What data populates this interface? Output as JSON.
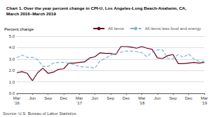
{
  "chart_data": {
    "type": "line",
    "title": "Chart 1. Over the year percent change in CPI-U, Los Angeles-Long Beach-Anaheim, CA,",
    "subtitle": "March 2016–March 2019",
    "ylabel": "Percent change",
    "annotations": [
      "Source: U.S. Bureau of Labor Statistics."
    ],
    "categories": [
      "Mar\n'16",
      null,
      null,
      "Jun",
      null,
      null,
      "Sep",
      null,
      null,
      "Dec",
      null,
      null,
      "Mar\n'17",
      null,
      null,
      "Jun",
      null,
      null,
      "Sep",
      null,
      null,
      "Dec",
      null,
      null,
      "Mar\n'18",
      null,
      null,
      "Jun",
      null,
      null,
      "Sep",
      null,
      null,
      "Dec",
      null,
      null,
      "Mar\n'19"
    ],
    "series": [
      {
        "name": "All items",
        "color": "#6b001a",
        "line_style": "solid",
        "values": [
          1.8,
          1.9,
          1.75,
          1.1,
          1.8,
          2.2,
          1.75,
          1.85,
          2.1,
          2.15,
          2.65,
          2.65,
          2.7,
          2.75,
          3.1,
          3.2,
          3.55,
          3.5,
          3.5,
          3.4,
          4.1,
          4.1,
          4.05,
          3.95,
          4.1,
          3.95,
          3.85,
          3.1,
          3.05,
          3.3,
          3.4,
          2.6,
          2.6,
          2.65,
          2.7,
          2.65,
          2.7
        ]
      },
      {
        "name": "All items less food and energy",
        "color": "#7ab4d8",
        "line_style": "dashed",
        "values": [
          3.1,
          3.35,
          3.15,
          3.15,
          2.95,
          2.35,
          2.35,
          2.65,
          2.7,
          2.7,
          2.65,
          2.5,
          2.35,
          2.3,
          2.3,
          2.2,
          2.85,
          3.05,
          3.35,
          3.5,
          3.6,
          3.7,
          3.7,
          3.65,
          3.55,
          3.2,
          3.6,
          3.8,
          3.8,
          3.05,
          3.05,
          3.4,
          3.15,
          3.45,
          3.0,
          2.8,
          2.8
        ]
      }
    ],
    "ylim": [
      0.0,
      5.0
    ],
    "yticks": [
      {
        "value": 0,
        "label": "0.0"
      },
      {
        "value": 1,
        "label": "1.0"
      },
      {
        "value": 2,
        "label": "2.0"
      },
      {
        "value": 3,
        "label": "3.0"
      },
      {
        "value": 4,
        "label": "4.0"
      },
      {
        "value": 5,
        "label": "5.0"
      }
    ],
    "grid": true,
    "legend": "upper right"
  }
}
